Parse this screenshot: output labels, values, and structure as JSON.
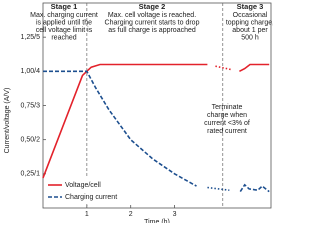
{
  "chart_data": {
    "type": "line",
    "xlabel": "Time (h)",
    "ylabel": "Current/voltage (A/V)",
    "xlim": [
      0,
      5.2
    ],
    "ylim": [
      0,
      1.5
    ],
    "xticks": [
      1,
      2,
      3
    ],
    "yticks": [
      {
        "value": 0.25,
        "label": "0,25/1"
      },
      {
        "value": 0.5,
        "label": "0,50/2"
      },
      {
        "value": 0.75,
        "label": "0,75/3"
      },
      {
        "value": 1.0,
        "label": "1,00/4"
      },
      {
        "value": 1.25,
        "label": "1,25/5"
      }
    ],
    "stage_boundaries": [
      1,
      4.1
    ],
    "gap_style": "dotted",
    "legend": "lower left",
    "series": [
      {
        "name": "Voltage/cell",
        "color": "#e3222b",
        "style": "solid",
        "x": [
          0,
          0.9,
          1,
          1.1,
          1.3,
          3.75,
          null,
          4.48,
          4.6,
          4.72,
          5.16
        ],
        "values": [
          0.22,
          0.97,
          1.0,
          1.03,
          1.05,
          1.05,
          null,
          1.0,
          1.02,
          1.05,
          1.05
        ]
      },
      {
        "name": "Charging current",
        "color": "#1d4f8f",
        "style": "dashed",
        "x": [
          0,
          1,
          1.2,
          1.5,
          2,
          2.5,
          3,
          3.5,
          null,
          4.5,
          4.6,
          4.7,
          4.9,
          5.0,
          5.16
        ],
        "values": [
          1.0,
          1.0,
          0.88,
          0.72,
          0.5,
          0.36,
          0.25,
          0.16,
          null,
          0.12,
          0.17,
          0.14,
          0.13,
          0.16,
          0.12
        ]
      }
    ],
    "stages": [
      {
        "title": "Stage 1",
        "lines": [
          "Max. charging current",
          "is applied until the",
          "cell voltage limit is",
          "reached"
        ]
      },
      {
        "title": "Stage 2",
        "lines": [
          "Max. cell voltage is reached.",
          "Charging current starts to drop",
          "as full charge is approached"
        ]
      },
      {
        "title": "Stage 3",
        "lines": [
          "Occasional",
          "topping charge,",
          "about 1 per",
          "500 h"
        ]
      }
    ],
    "annotation": [
      "Terminate",
      "charge when",
      "current <3% of",
      "rated current"
    ]
  }
}
